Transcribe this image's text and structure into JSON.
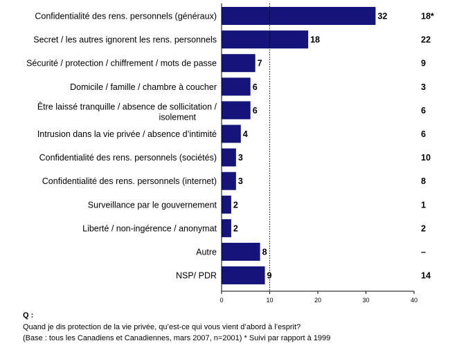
{
  "chart_data": {
    "type": "bar",
    "orientation": "horizontal",
    "categories": [
      [
        "Confidentialité des rens. personnels (généraux)"
      ],
      [
        "Secret / les autres ignorent les rens. personnels"
      ],
      [
        "Sécurité / protection / chiffrement / mots de passe"
      ],
      [
        "Domicile / famille / chambre à coucher"
      ],
      [
        "Être laissé tranquille / absence de sollicitation /",
        "isolement"
      ],
      [
        "Intrusion dans la vie privée / absence d’intimité"
      ],
      [
        "Confidentialité des rens. personnels (sociétés)"
      ],
      [
        "Confidentialité des rens. personnels (internet)"
      ],
      [
        "Surveillance par le gouvernement"
      ],
      [
        "Liberté / non-ingérence / anonymat"
      ],
      [
        "Autre"
      ],
      [
        "NSP/ PDR"
      ]
    ],
    "values": [
      32,
      18,
      7,
      6,
      6,
      4,
      3,
      3,
      2,
      2,
      8,
      9
    ],
    "comparison_values": [
      "18*",
      "22",
      "9",
      "3",
      "6",
      "6",
      "10",
      "8",
      "1",
      "2",
      "–",
      "14"
    ],
    "xlim": [
      0,
      40
    ],
    "x_ticks": [
      "0",
      "10",
      "20",
      "30",
      "40"
    ],
    "reference_line_at": 10,
    "bar_color": "#14147a",
    "grid": false
  },
  "footnote": {
    "q_label": "Q :",
    "question": "Quand je dis protection de la vie privée, qu’est-ce qui vous vient d’abord à l’esprit?",
    "base": "(Base : tous les Canadiens et Canadiennes, mars 2007, n=2001) * Suivi par rapport à 1999"
  }
}
